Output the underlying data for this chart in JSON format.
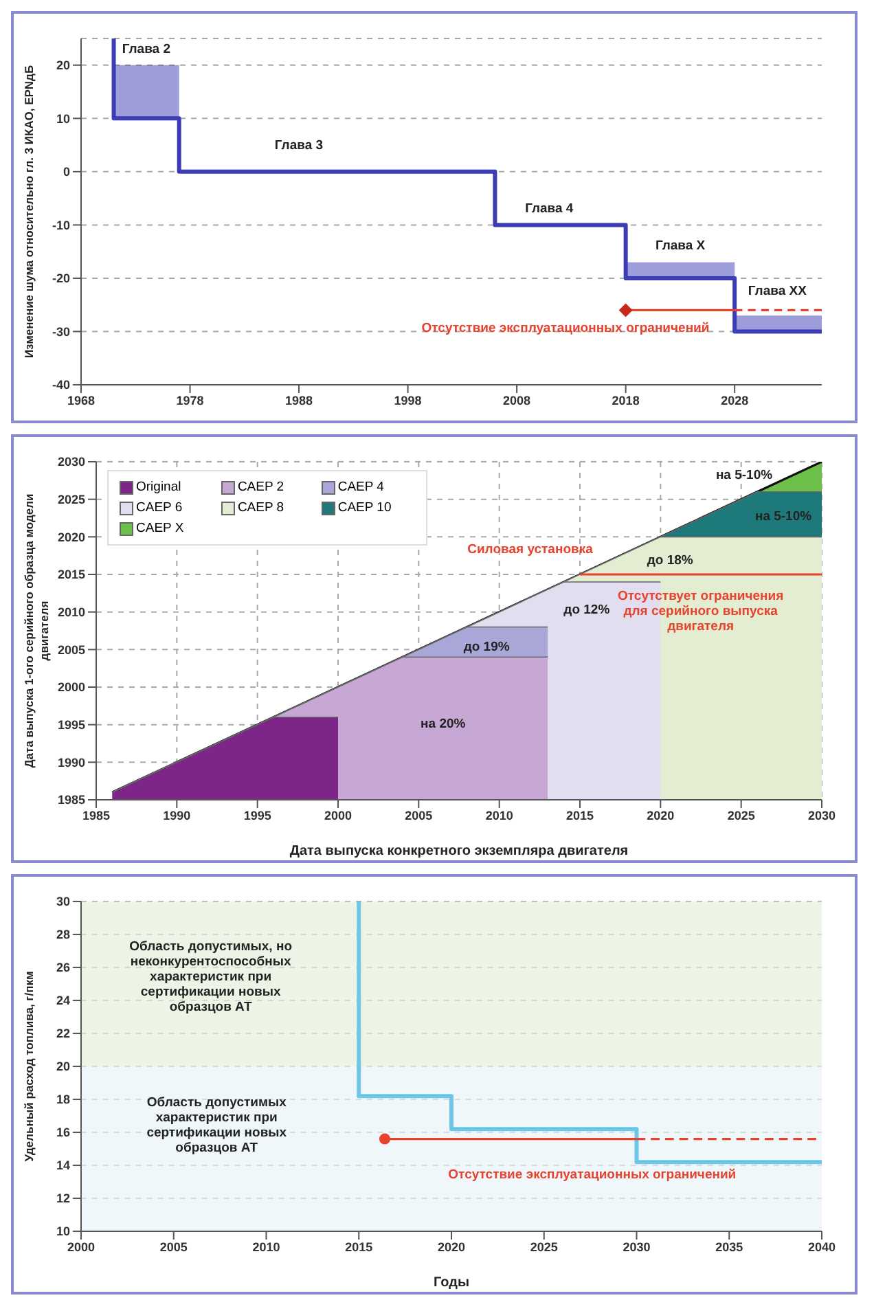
{
  "chart_data": [
    {
      "type": "step",
      "ylabel": "Изменение шума относительно гл. 3 ИКАО, EPNдБ",
      "xlim": [
        1968,
        2036
      ],
      "xticks": [
        1968,
        1978,
        1988,
        1998,
        2008,
        2018,
        2028
      ],
      "ylim": [
        -40,
        25
      ],
      "yticks": [
        -40,
        -30,
        -20,
        -10,
        0,
        10,
        20
      ],
      "grid": "y",
      "series": [
        {
          "color": "#3c3cb4",
          "x": [
            1971,
            1971,
            1977,
            2006,
            2018,
            2028,
            2036
          ],
          "values": [
            25,
            10,
            0,
            -10,
            -20,
            -30,
            -30
          ],
          "lower": [
            25,
            10,
            0,
            -10,
            -20,
            -30,
            -30
          ],
          "upper": [
            25,
            20,
            0,
            -10,
            -17,
            -27,
            -27
          ]
        },
        {
          "type": "scatter",
          "color": "#c8281e",
          "marker": "diamond",
          "x": [
            2018
          ],
          "values": [
            -26
          ]
        },
        {
          "type": "line",
          "color": "#e8412c",
          "x": [
            2018,
            2028
          ],
          "values": [
            -26,
            -26
          ]
        },
        {
          "type": "line",
          "color": "#e8412c",
          "line_style": "dashed",
          "x": [
            2028,
            2036
          ],
          "values": [
            -26,
            -26
          ]
        }
      ],
      "annotations": [
        "Глава 2",
        "Глава 3",
        "Глава 4",
        "Глава X",
        "Глава XX",
        "Отсутствие эксплуатационных ограничений"
      ]
    },
    {
      "type": "area",
      "xlabel": "Дата выпуска конкретного экземпляра двигателя",
      "ylabel": "Дата выпуска 1-ого серийного образца модели двигателя",
      "xlim": [
        1985,
        2030
      ],
      "xticks": [
        1985,
        1990,
        1995,
        2000,
        2005,
        2010,
        2015,
        2020,
        2025,
        2030
      ],
      "ylim": [
        1985,
        2030
      ],
      "yticks": [
        1985,
        1990,
        1995,
        2000,
        2005,
        2010,
        2015,
        2020,
        2025,
        2030
      ],
      "grid": true,
      "legend": "top left",
      "series": [
        {
          "name": "CAEP X",
          "color": "#6cc04a",
          "x": [
            1986,
            2030
          ],
          "values": [
            1986,
            2030
          ]
        },
        {
          "name": "CAEP 10",
          "color": "#1e7a7a",
          "x": [
            1986,
            2026,
            2030
          ],
          "values": [
            1986,
            2026,
            2026
          ]
        },
        {
          "name": "CAEP 8",
          "color": "#e2edd2",
          "x": [
            1986,
            2020,
            2030
          ],
          "values": [
            1986,
            2020,
            2020
          ]
        },
        {
          "name": "CAEP 6",
          "color": "#e2def0",
          "x": [
            1986,
            2014,
            2020
          ],
          "values": [
            1986,
            2014,
            2014
          ]
        },
        {
          "name": "CAEP 4",
          "color": "#a9a6d8",
          "x": [
            1986,
            2008,
            2013
          ],
          "values": [
            1986,
            2008,
            2008
          ]
        },
        {
          "name": "CAEP 2",
          "color": "#c7a7d3",
          "x": [
            1986,
            2004,
            2013
          ],
          "values": [
            1986,
            2004,
            2004
          ]
        },
        {
          "name": "Original",
          "color": "#7d2687",
          "x": [
            1986,
            1996,
            2000
          ],
          "values": [
            1986,
            1996,
            1996
          ]
        },
        {
          "type": "line",
          "color": "#e8412c",
          "x": [
            2015,
            2030
          ],
          "values": [
            2015,
            2015
          ]
        }
      ],
      "annotations": [
        "на 20%",
        "до 19%",
        "до 12%",
        "до 18%",
        "на 5-10%",
        "на 5-10%",
        "Силовая установка",
        "Отсутствует ограничения для серийного выпуска двигателя"
      ]
    },
    {
      "type": "step",
      "xlabel": "Годы",
      "ylabel": "Удельный расход топлива, г/пкм",
      "xlim": [
        2000,
        2040
      ],
      "xticks": [
        2000,
        2005,
        2010,
        2015,
        2020,
        2025,
        2030,
        2035,
        2040
      ],
      "ylim": [
        10,
        30
      ],
      "yticks": [
        10,
        12,
        14,
        16,
        18,
        20,
        22,
        24,
        26,
        28,
        30
      ],
      "grid": "y",
      "bands": [
        {
          "axis": "y",
          "from": 20,
          "to": 30,
          "color": "#e6f0dc"
        },
        {
          "axis": "y",
          "from": 10,
          "to": 20,
          "color": "#e8f3fa"
        }
      ],
      "series": [
        {
          "color": "#6ec6e6",
          "x": [
            2015,
            2015,
            2020,
            2030,
            2040
          ],
          "values": [
            30,
            18.2,
            16.2,
            14.2,
            14.2
          ]
        },
        {
          "type": "scatter",
          "color": "#e8412c",
          "marker": "circle",
          "x": [
            2016.4
          ],
          "values": [
            15.6
          ]
        },
        {
          "type": "line",
          "color": "#e8412c",
          "x": [
            2016.4,
            2030
          ],
          "values": [
            15.6,
            15.6
          ]
        },
        {
          "type": "line",
          "color": "#e8412c",
          "line_style": "dashed",
          "x": [
            2030,
            2039.7
          ],
          "values": [
            15.6,
            15.6
          ]
        }
      ],
      "annotations": [
        "Область допустимых, но неконкурентоспособных характеристик при сертификации новых образцов АТ",
        "Область допустимых характеристик при сертификации новых образцов АТ",
        "Отсутствие эксплуатационных ограничений"
      ]
    }
  ]
}
